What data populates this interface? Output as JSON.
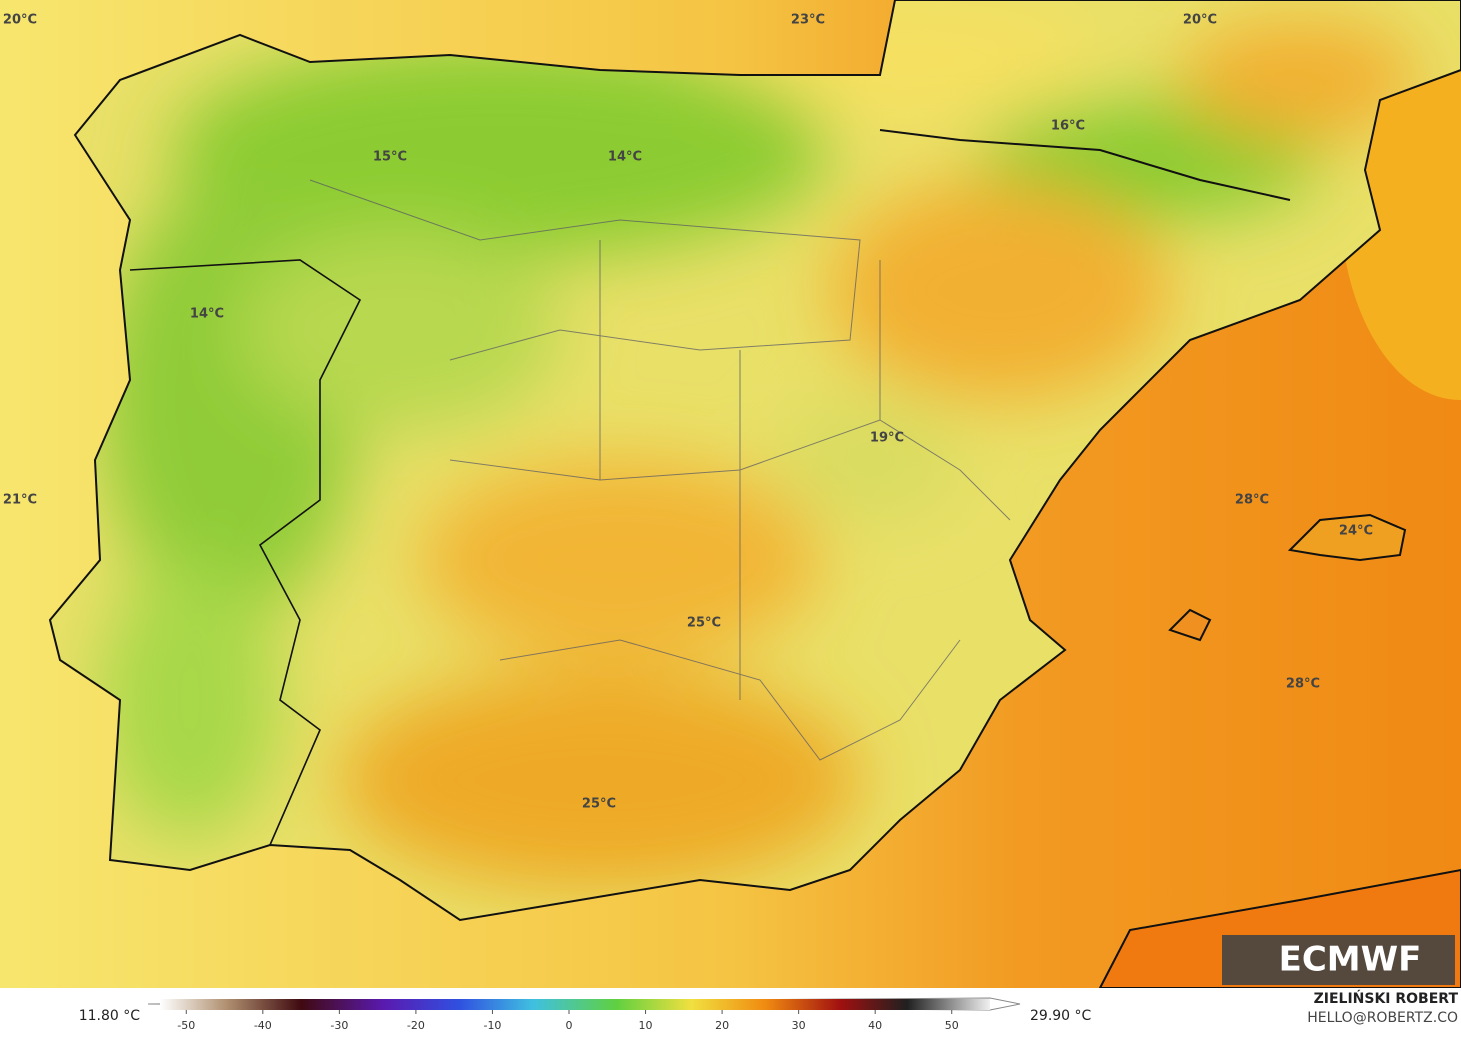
{
  "map": {
    "labels": [
      "20°C",
      "23°C",
      "20°C",
      "16°C",
      "15°C",
      "14°C",
      "14°C",
      "19°C",
      "21°C",
      "28°C",
      "24°C",
      "25°C",
      "28°C",
      "25°C"
    ]
  },
  "colorbar": {
    "min_label": "11.80 °C",
    "max_label": "29.90 °C",
    "lim": [
      -55,
      55
    ],
    "ticks": [
      -50,
      -40,
      -30,
      -20,
      -10,
      0,
      10,
      20,
      30,
      40,
      50
    ]
  },
  "credit": {
    "name": "ZIELIŃSKI ROBERT",
    "email": "HELLO@ROBERTZ.CO"
  },
  "logo": "ECMWF"
}
